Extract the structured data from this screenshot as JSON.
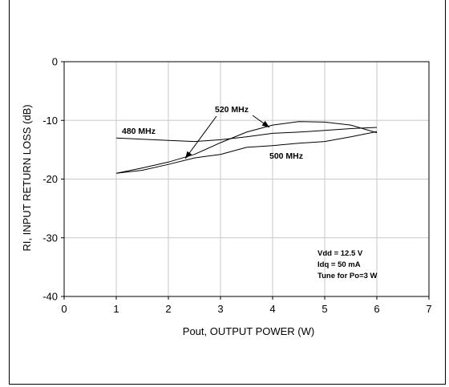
{
  "chart_data": {
    "type": "line",
    "xlabel": "Pout, OUTPUT POWER (W)",
    "ylabel": "RI, INPUT RETURN LOSS (dB)",
    "xlim": [
      0,
      7
    ],
    "ylim": [
      -40,
      0
    ],
    "xticks": [
      "0",
      "1",
      "2",
      "3",
      "4",
      "5",
      "6",
      "7"
    ],
    "yticks": [
      "0",
      "-10",
      "-20",
      "-30",
      "-40"
    ],
    "grid": true,
    "series": [
      {
        "name": "480 MHz",
        "x": [
          1,
          1.5,
          2,
          2.5,
          3,
          3.5,
          4,
          4.5,
          5,
          5.5,
          6
        ],
        "y": [
          -13.0,
          -13.2,
          -13.4,
          -13.6,
          -13.3,
          -12.8,
          -12.2,
          -12.0,
          -11.7,
          -11.4,
          -11.2
        ]
      },
      {
        "name": "500 MHz",
        "x": [
          1,
          1.5,
          2,
          2.5,
          3,
          3.5,
          4,
          4.5,
          5,
          5.5,
          6
        ],
        "y": [
          -19.0,
          -18.5,
          -17.5,
          -16.4,
          -15.8,
          -14.6,
          -14.3,
          -13.9,
          -13.6,
          -12.8,
          -11.9
        ]
      },
      {
        "name": "520 MHz",
        "x": [
          1,
          1.5,
          2,
          2.5,
          3,
          3.5,
          4,
          4.5,
          5,
          5.5,
          6
        ],
        "y": [
          -19.0,
          -18.1,
          -17.1,
          -15.8,
          -13.8,
          -12.0,
          -10.8,
          -10.2,
          -10.3,
          -10.8,
          -12.1
        ]
      }
    ],
    "annotations": [
      {
        "text": "480 MHz"
      },
      {
        "text": "520 MHz"
      },
      {
        "text": "500 MHz"
      }
    ],
    "notes": [
      "Vdd = 12.5 V",
      "Idq = 50 mA",
      "Tune for Po=3 W"
    ]
  }
}
